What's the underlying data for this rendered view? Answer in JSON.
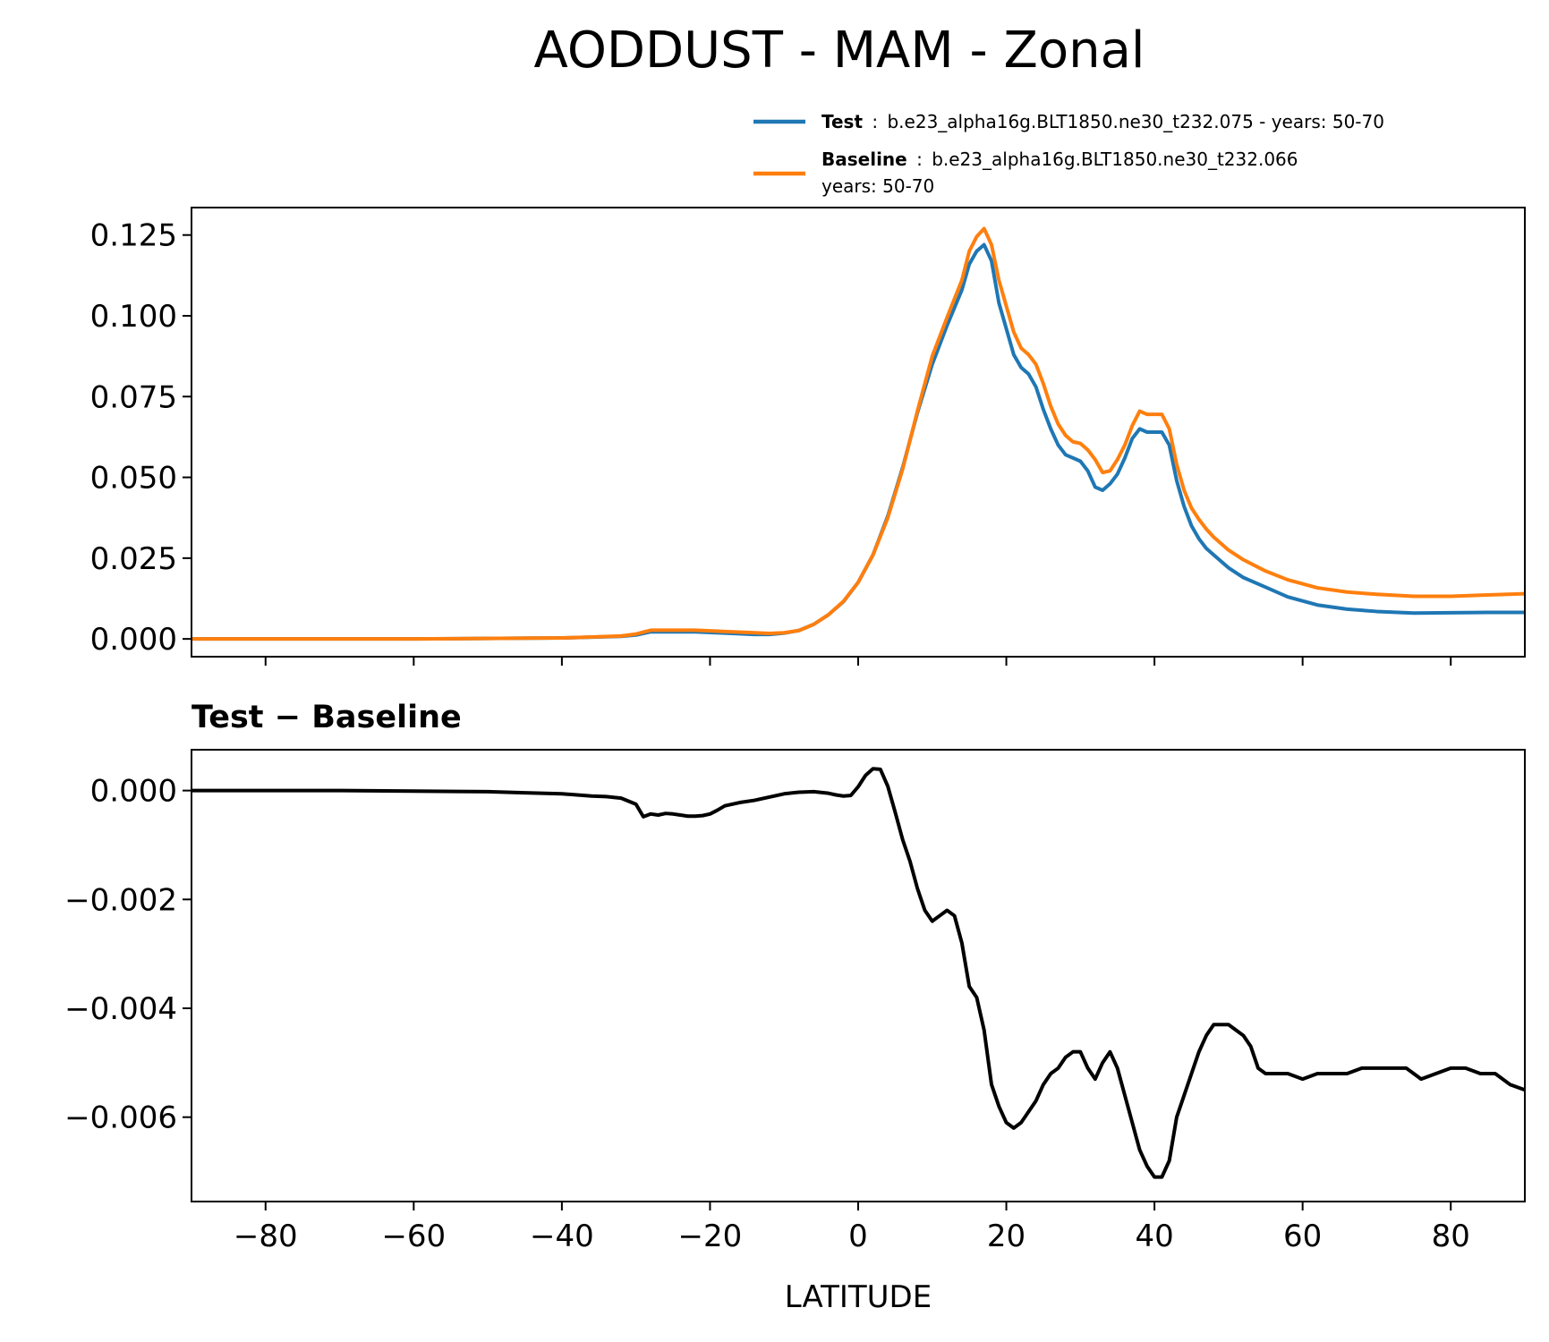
{
  "figure": {
    "title": "AODDUST - MAM - Zonal",
    "xlabel": "LATITUDE",
    "legend": {
      "position": "top-right",
      "entries": [
        {
          "name": "Test",
          "separator": ":",
          "line1": "b.e23_alpha16g.BLT1850.ne30_t232.075 - years: 50-70",
          "line2": "",
          "color": "#1f77b4"
        },
        {
          "name": "Baseline",
          "separator": ":",
          "line1": "b.e23_alpha16g.BLT1850.ne30_t232.066",
          "line2": "years: 50-70",
          "color": "#ff7f0e"
        }
      ]
    }
  },
  "chart_data": [
    {
      "type": "line",
      "panel": "top",
      "title": "",
      "xlabel": "",
      "ylabel": "",
      "xlim": [
        -90,
        90
      ],
      "ylim": [
        -0.0055,
        0.1335
      ],
      "xticks": [
        -80,
        -60,
        -40,
        -20,
        0,
        20,
        40,
        60,
        80
      ],
      "yticks": [
        0.0,
        0.025,
        0.05,
        0.075,
        0.1,
        0.125
      ],
      "ytick_labels": [
        "0.000",
        "0.025",
        "0.050",
        "0.075",
        "0.100",
        "0.125"
      ],
      "series": [
        {
          "name": "Test",
          "color": "#1f77b4",
          "x": [
            -90,
            -60,
            -40,
            -32,
            -30,
            -28,
            -22,
            -18,
            -14,
            -12,
            -10,
            -8,
            -6,
            -4,
            -2,
            0,
            2,
            4,
            6,
            8,
            10,
            12,
            14,
            15,
            16,
            17,
            18,
            19,
            20,
            21,
            22,
            23,
            24,
            25,
            26,
            27,
            28,
            29,
            30,
            31,
            32,
            33,
            34,
            35,
            36,
            37,
            38,
            39,
            40,
            41,
            42,
            43,
            44,
            45,
            46,
            47,
            48,
            50,
            52,
            55,
            58,
            62,
            66,
            70,
            75,
            80,
            85,
            90
          ],
          "values": [
            0,
            0,
            0.0003,
            0.0008,
            0.0012,
            0.0022,
            0.0022,
            0.0018,
            0.0014,
            0.0014,
            0.0018,
            0.0026,
            0.0045,
            0.0075,
            0.0115,
            0.0175,
            0.026,
            0.038,
            0.053,
            0.07,
            0.085,
            0.097,
            0.108,
            0.116,
            0.12,
            0.122,
            0.117,
            0.104,
            0.096,
            0.088,
            0.084,
            0.082,
            0.078,
            0.071,
            0.065,
            0.06,
            0.057,
            0.056,
            0.055,
            0.052,
            0.047,
            0.046,
            0.048,
            0.051,
            0.056,
            0.062,
            0.065,
            0.064,
            0.064,
            0.064,
            0.06,
            0.049,
            0.041,
            0.035,
            0.031,
            0.028,
            0.026,
            0.022,
            0.019,
            0.016,
            0.013,
            0.0105,
            0.0092,
            0.0085,
            0.008,
            0.0081,
            0.0082,
            0.0082
          ]
        },
        {
          "name": "Baseline",
          "color": "#ff7f0e",
          "x": [
            -90,
            -60,
            -40,
            -32,
            -30,
            -28,
            -22,
            -18,
            -14,
            -12,
            -10,
            -8,
            -6,
            -4,
            -2,
            0,
            2,
            4,
            6,
            8,
            10,
            12,
            14,
            15,
            16,
            17,
            18,
            19,
            20,
            21,
            22,
            23,
            24,
            25,
            26,
            27,
            28,
            29,
            30,
            31,
            32,
            33,
            34,
            35,
            36,
            37,
            38,
            39,
            40,
            41,
            42,
            43,
            44,
            45,
            46,
            47,
            48,
            50,
            52,
            55,
            58,
            62,
            66,
            70,
            75,
            80,
            85,
            90
          ],
          "values": [
            0,
            0,
            0.0003,
            0.0009,
            0.0015,
            0.0027,
            0.0027,
            0.0023,
            0.0019,
            0.0017,
            0.0019,
            0.0026,
            0.0045,
            0.0075,
            0.0116,
            0.0175,
            0.026,
            0.0375,
            0.0525,
            0.0705,
            0.0875,
            0.0995,
            0.111,
            0.12,
            0.1245,
            0.127,
            0.122,
            0.111,
            0.103,
            0.095,
            0.09,
            0.088,
            0.085,
            0.079,
            0.072,
            0.0665,
            0.063,
            0.061,
            0.0605,
            0.0585,
            0.0555,
            0.0515,
            0.052,
            0.0555,
            0.06,
            0.066,
            0.0705,
            0.0695,
            0.0695,
            0.0695,
            0.065,
            0.054,
            0.046,
            0.0405,
            0.037,
            0.034,
            0.0315,
            0.0275,
            0.0245,
            0.021,
            0.0183,
            0.0158,
            0.0145,
            0.0138,
            0.0132,
            0.0132,
            0.0136,
            0.014
          ]
        }
      ]
    },
    {
      "type": "line",
      "panel": "bottom",
      "title": "Test − Baseline",
      "xlabel": "LATITUDE",
      "ylabel": "",
      "xlim": [
        -90,
        90
      ],
      "ylim": [
        -0.00755,
        0.00075
      ],
      "xticks": [
        -80,
        -60,
        -40,
        -20,
        0,
        20,
        40,
        60,
        80
      ],
      "xtick_labels": [
        "−80",
        "−60",
        "−40",
        "−20",
        "0",
        "20",
        "40",
        "60",
        "80"
      ],
      "yticks": [
        0.0,
        -0.002,
        -0.004,
        -0.006
      ],
      "ytick_labels": [
        "0.000",
        "−0.002",
        "−0.004",
        "−0.006"
      ],
      "series": [
        {
          "name": "Test − Baseline",
          "color": "#000000",
          "x": [
            -90,
            -80,
            -70,
            -60,
            -50,
            -45,
            -40,
            -36,
            -34,
            -32,
            -30,
            -29,
            -28,
            -27,
            -26,
            -25,
            -24,
            -23,
            -22,
            -21,
            -20,
            -19,
            -18,
            -16,
            -14,
            -12,
            -10,
            -8,
            -6,
            -4,
            -3,
            -2,
            -1,
            0,
            1,
            2,
            3,
            4,
            5,
            6,
            7,
            8,
            9,
            10,
            11,
            12,
            13,
            14,
            15,
            16,
            17,
            18,
            19,
            20,
            21,
            22,
            23,
            24,
            25,
            26,
            27,
            28,
            29,
            30,
            31,
            32,
            33,
            34,
            35,
            36,
            37,
            38,
            39,
            40,
            41,
            42,
            43,
            44,
            45,
            46,
            47,
            48,
            49,
            50,
            51,
            52,
            53,
            54,
            55,
            56,
            58,
            60,
            62,
            64,
            66,
            68,
            70,
            72,
            74,
            75,
            76,
            78,
            80,
            82,
            84,
            86,
            88,
            90
          ],
          "values": [
            0,
            0,
            0,
            -1e-05,
            -2e-05,
            -4e-05,
            -6e-05,
            -0.0001,
            -0.00011,
            -0.00014,
            -0.00025,
            -0.00048,
            -0.00043,
            -0.00045,
            -0.00042,
            -0.00043,
            -0.00045,
            -0.00047,
            -0.00047,
            -0.00046,
            -0.00043,
            -0.00036,
            -0.00028,
            -0.00022,
            -0.00018,
            -0.00012,
            -6e-05,
            -3e-05,
            -2e-05,
            -5e-05,
            -8e-05,
            -0.0001,
            -9e-05,
            7e-05,
            0.00028,
            0.0004,
            0.00039,
            8e-05,
            -0.0004,
            -0.0009,
            -0.0013,
            -0.0018,
            -0.0022,
            -0.0024,
            -0.0023,
            -0.0022,
            -0.0023,
            -0.0028,
            -0.0036,
            -0.0038,
            -0.0044,
            -0.0054,
            -0.0058,
            -0.0061,
            -0.0062,
            -0.0061,
            -0.0059,
            -0.0057,
            -0.0054,
            -0.0052,
            -0.0051,
            -0.0049,
            -0.0048,
            -0.0048,
            -0.0051,
            -0.0053,
            -0.005,
            -0.0048,
            -0.0051,
            -0.0056,
            -0.0061,
            -0.0066,
            -0.0069,
            -0.0071,
            -0.0071,
            -0.0068,
            -0.006,
            -0.0056,
            -0.0052,
            -0.0048,
            -0.0045,
            -0.0043,
            -0.0043,
            -0.0043,
            -0.0044,
            -0.0045,
            -0.0047,
            -0.0051,
            -0.0052,
            -0.0052,
            -0.0052,
            -0.0053,
            -0.0052,
            -0.0052,
            -0.0052,
            -0.0051,
            -0.0051,
            -0.0051,
            -0.0051,
            -0.0052,
            -0.0053,
            -0.0052,
            -0.0051,
            -0.0051,
            -0.0052,
            -0.0052,
            -0.0054,
            -0.0055
          ]
        }
      ]
    }
  ]
}
